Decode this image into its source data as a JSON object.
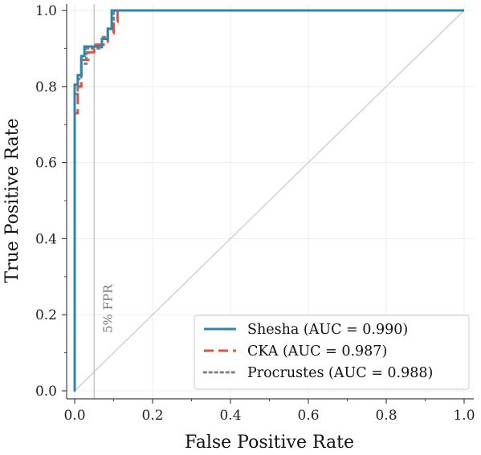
{
  "chart_data": {
    "type": "line",
    "title": "",
    "xlabel": "False Positive Rate",
    "ylabel": "True Positive Rate",
    "xlim": [
      0,
      1
    ],
    "ylim": [
      0,
      1
    ],
    "xticks": [
      "0.0",
      "0.2",
      "0.4",
      "0.6",
      "0.8",
      "1.0"
    ],
    "yticks": [
      "0.0",
      "0.2",
      "0.4",
      "0.6",
      "0.8",
      "1.0"
    ],
    "grid": true,
    "legend_position": "bottom-right",
    "reference_line": {
      "label": "5% FPR",
      "x": 0.05,
      "color": "#bbbbbb"
    },
    "diagonal": {
      "from": [
        0,
        0
      ],
      "to": [
        1,
        1
      ],
      "color": "#cccccc"
    },
    "series": [
      {
        "name": "Shesha (AUC = 0.990)",
        "style": "solid",
        "color": "#2e86ab",
        "points": [
          [
            0,
            0
          ],
          [
            0,
            0.805
          ],
          [
            0.008,
            0.805
          ],
          [
            0.008,
            0.83
          ],
          [
            0.017,
            0.83
          ],
          [
            0.017,
            0.88
          ],
          [
            0.025,
            0.88
          ],
          [
            0.025,
            0.905
          ],
          [
            0.07,
            0.905
          ],
          [
            0.07,
            0.925
          ],
          [
            0.085,
            0.925
          ],
          [
            0.085,
            0.952
          ],
          [
            0.095,
            0.952
          ],
          [
            0.095,
            1.0
          ],
          [
            1.0,
            1.0
          ]
        ]
      },
      {
        "name": "CKA (AUC = 0.987)",
        "style": "dashed",
        "color": "#e4513b",
        "points": [
          [
            0,
            0
          ],
          [
            0,
            0.73
          ],
          [
            0.008,
            0.73
          ],
          [
            0.008,
            0.8
          ],
          [
            0.017,
            0.8
          ],
          [
            0.017,
            0.87
          ],
          [
            0.035,
            0.87
          ],
          [
            0.035,
            0.89
          ],
          [
            0.05,
            0.89
          ],
          [
            0.05,
            0.91
          ],
          [
            0.085,
            0.91
          ],
          [
            0.085,
            0.94
          ],
          [
            0.1,
            0.94
          ],
          [
            0.1,
            0.97
          ],
          [
            0.11,
            0.97
          ],
          [
            0.11,
            1.0
          ],
          [
            1.0,
            1.0
          ]
        ]
      },
      {
        "name": "Procrustes (AUC = 0.988)",
        "style": "dotted",
        "color": "#7a8490",
        "points": [
          [
            0,
            0
          ],
          [
            0,
            0.78
          ],
          [
            0.008,
            0.78
          ],
          [
            0.008,
            0.82
          ],
          [
            0.017,
            0.82
          ],
          [
            0.017,
            0.86
          ],
          [
            0.03,
            0.86
          ],
          [
            0.03,
            0.9
          ],
          [
            0.07,
            0.9
          ],
          [
            0.07,
            0.93
          ],
          [
            0.085,
            0.93
          ],
          [
            0.085,
            0.95
          ],
          [
            0.1,
            0.95
          ],
          [
            0.1,
            1.0
          ],
          [
            1.0,
            1.0
          ]
        ]
      }
    ]
  }
}
